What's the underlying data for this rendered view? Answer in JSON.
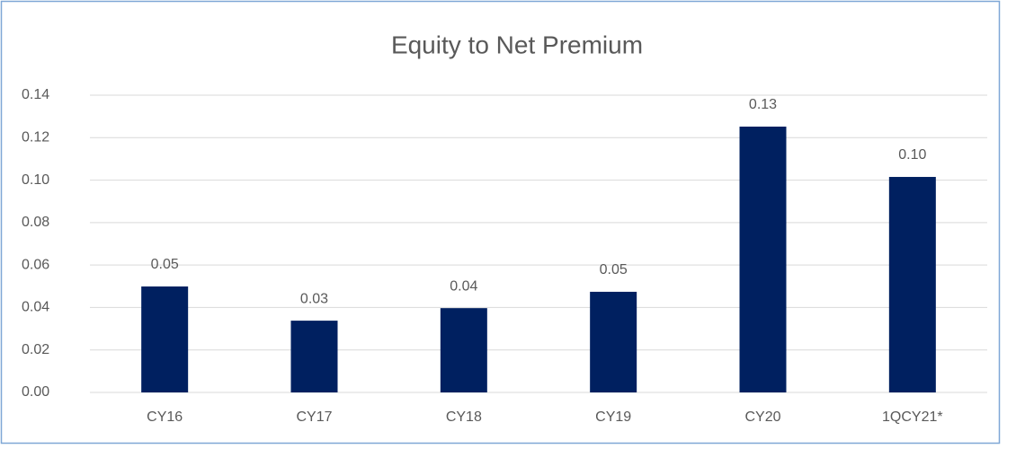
{
  "chart_data": {
    "type": "bar",
    "title": "Equity to Net Premium",
    "categories": [
      "CY16",
      "CY17",
      "CY18",
      "CY19",
      "CY20",
      "1QCY21*"
    ],
    "values": [
      0.0499,
      0.0338,
      0.0397,
      0.0474,
      0.1252,
      0.1015
    ],
    "value_labels": [
      "0.05",
      "0.03",
      "0.04",
      "0.05",
      "0.13",
      "0.10"
    ],
    "color": "#002060",
    "ylim": [
      0,
      0.14
    ],
    "yticks": [
      {
        "value": 0,
        "label": "0.00"
      },
      {
        "value": 0.02,
        "label": "0.02"
      },
      {
        "value": 0.04,
        "label": "0.04"
      },
      {
        "value": 0.06,
        "label": "0.06"
      },
      {
        "value": 0.08,
        "label": "0.08"
      },
      {
        "value": 0.1,
        "label": "0.10"
      },
      {
        "value": 0.12,
        "label": "0.12"
      },
      {
        "value": 0.14,
        "label": "0.14"
      }
    ],
    "grid": true
  }
}
